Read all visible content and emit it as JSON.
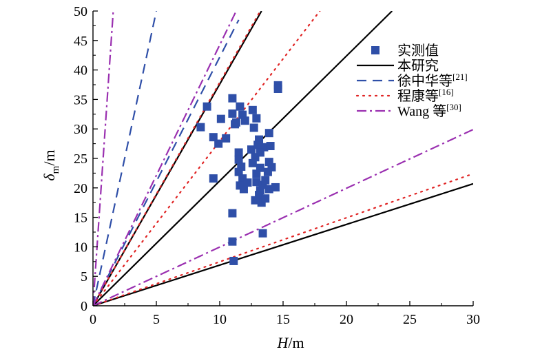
{
  "chart_data": {
    "type": "scatter",
    "xlabel_main": "H",
    "xlabel_unit": "/m",
    "ylabel_main": "δ",
    "ylabel_sub": "m",
    "ylabel_unit": "/m",
    "xlim": [
      0,
      30
    ],
    "ylim": [
      0,
      50
    ],
    "xticks": [
      0,
      5,
      10,
      15,
      20,
      25,
      30
    ],
    "yticks": [
      0,
      5,
      10,
      15,
      20,
      25,
      30,
      35,
      40,
      45,
      50
    ],
    "grid": false,
    "legend_position": "top-right",
    "series": [
      {
        "key": "measured",
        "name": "实测值",
        "kind": "points",
        "color": "#2f4fa8",
        "points": [
          [
            8.5,
            30.3
          ],
          [
            9.0,
            33.8
          ],
          [
            9.5,
            28.6
          ],
          [
            9.5,
            21.6
          ],
          [
            9.9,
            27.5
          ],
          [
            10.1,
            31.7
          ],
          [
            10.5,
            28.4
          ],
          [
            11.0,
            35.2
          ],
          [
            11.0,
            32.6
          ],
          [
            11.2,
            30.8
          ],
          [
            11.3,
            31.1
          ],
          [
            11.6,
            33.8
          ],
          [
            11.8,
            32.4
          ],
          [
            12.0,
            31.4
          ],
          [
            11.5,
            26.0
          ],
          [
            11.5,
            24.8
          ],
          [
            11.7,
            23.6
          ],
          [
            11.5,
            22.7
          ],
          [
            11.8,
            21.6
          ],
          [
            11.6,
            20.4
          ],
          [
            11.9,
            19.8
          ],
          [
            12.2,
            20.9
          ],
          [
            12.6,
            33.2
          ],
          [
            12.7,
            30.2
          ],
          [
            12.9,
            31.8
          ],
          [
            12.5,
            26.5
          ],
          [
            12.8,
            25.2
          ],
          [
            13.0,
            27.3
          ],
          [
            12.6,
            24.2
          ],
          [
            12.9,
            22.4
          ],
          [
            13.2,
            23.4
          ],
          [
            12.9,
            21.0
          ],
          [
            13.2,
            19.6
          ],
          [
            13.4,
            20.5
          ],
          [
            13.6,
            21.3
          ],
          [
            13.9,
            19.8
          ],
          [
            13.1,
            18.8
          ],
          [
            13.3,
            17.5
          ],
          [
            13.6,
            18.2
          ],
          [
            12.8,
            17.9
          ],
          [
            13.1,
            28.2
          ],
          [
            13.5,
            26.9
          ],
          [
            13.9,
            29.3
          ],
          [
            14.0,
            27.1
          ],
          [
            13.9,
            24.4
          ],
          [
            14.1,
            23.5
          ],
          [
            14.4,
            20.1
          ],
          [
            13.8,
            22.7
          ],
          [
            13.4,
            12.3
          ],
          [
            14.6,
            37.4
          ],
          [
            14.6,
            36.8
          ],
          [
            11.0,
            15.7
          ],
          [
            11.0,
            10.9
          ],
          [
            11.1,
            7.6
          ],
          [
            13.2,
            26.0
          ]
        ]
      },
      {
        "key": "this_study",
        "name": "本研究",
        "kind": "lines",
        "color": "#000000",
        "dash": "",
        "lines": [
          [
            [
              0,
              0
            ],
            [
              13.3,
              50
            ]
          ],
          [
            [
              0,
              0
            ],
            [
              23.6,
              50
            ]
          ],
          [
            [
              0,
              0
            ],
            [
              30,
              20.7
            ]
          ]
        ]
      },
      {
        "key": "xu",
        "name": "徐中华等",
        "ref": "[21]",
        "kind": "lines",
        "color": "#2f4fa8",
        "dash": "14,9",
        "lines": [
          [
            [
              0,
              0
            ],
            [
              5.0,
              50
            ]
          ],
          [
            [
              0,
              0
            ],
            [
              11.5,
              48.5
            ]
          ]
        ]
      },
      {
        "key": "cheng",
        "name": "程康等",
        "ref": "[16]",
        "kind": "lines",
        "color": "#e02424",
        "dash": "2,7",
        "lines": [
          [
            [
              0,
              0
            ],
            [
              13.2,
              50
            ]
          ],
          [
            [
              0,
              0
            ],
            [
              17.9,
              50
            ]
          ],
          [
            [
              0,
              0
            ],
            [
              30,
              22.4
            ]
          ]
        ]
      },
      {
        "key": "wang",
        "name": "Wang 等",
        "ref": "[30]",
        "kind": "lines",
        "color": "#9a2fb0",
        "dash": "14,5,3,5",
        "lines": [
          [
            [
              0,
              0
            ],
            [
              1.6,
              50
            ]
          ],
          [
            [
              0,
              0
            ],
            [
              11.3,
              50
            ]
          ],
          [
            [
              0,
              0
            ],
            [
              30,
              29.9
            ]
          ]
        ]
      }
    ]
  }
}
